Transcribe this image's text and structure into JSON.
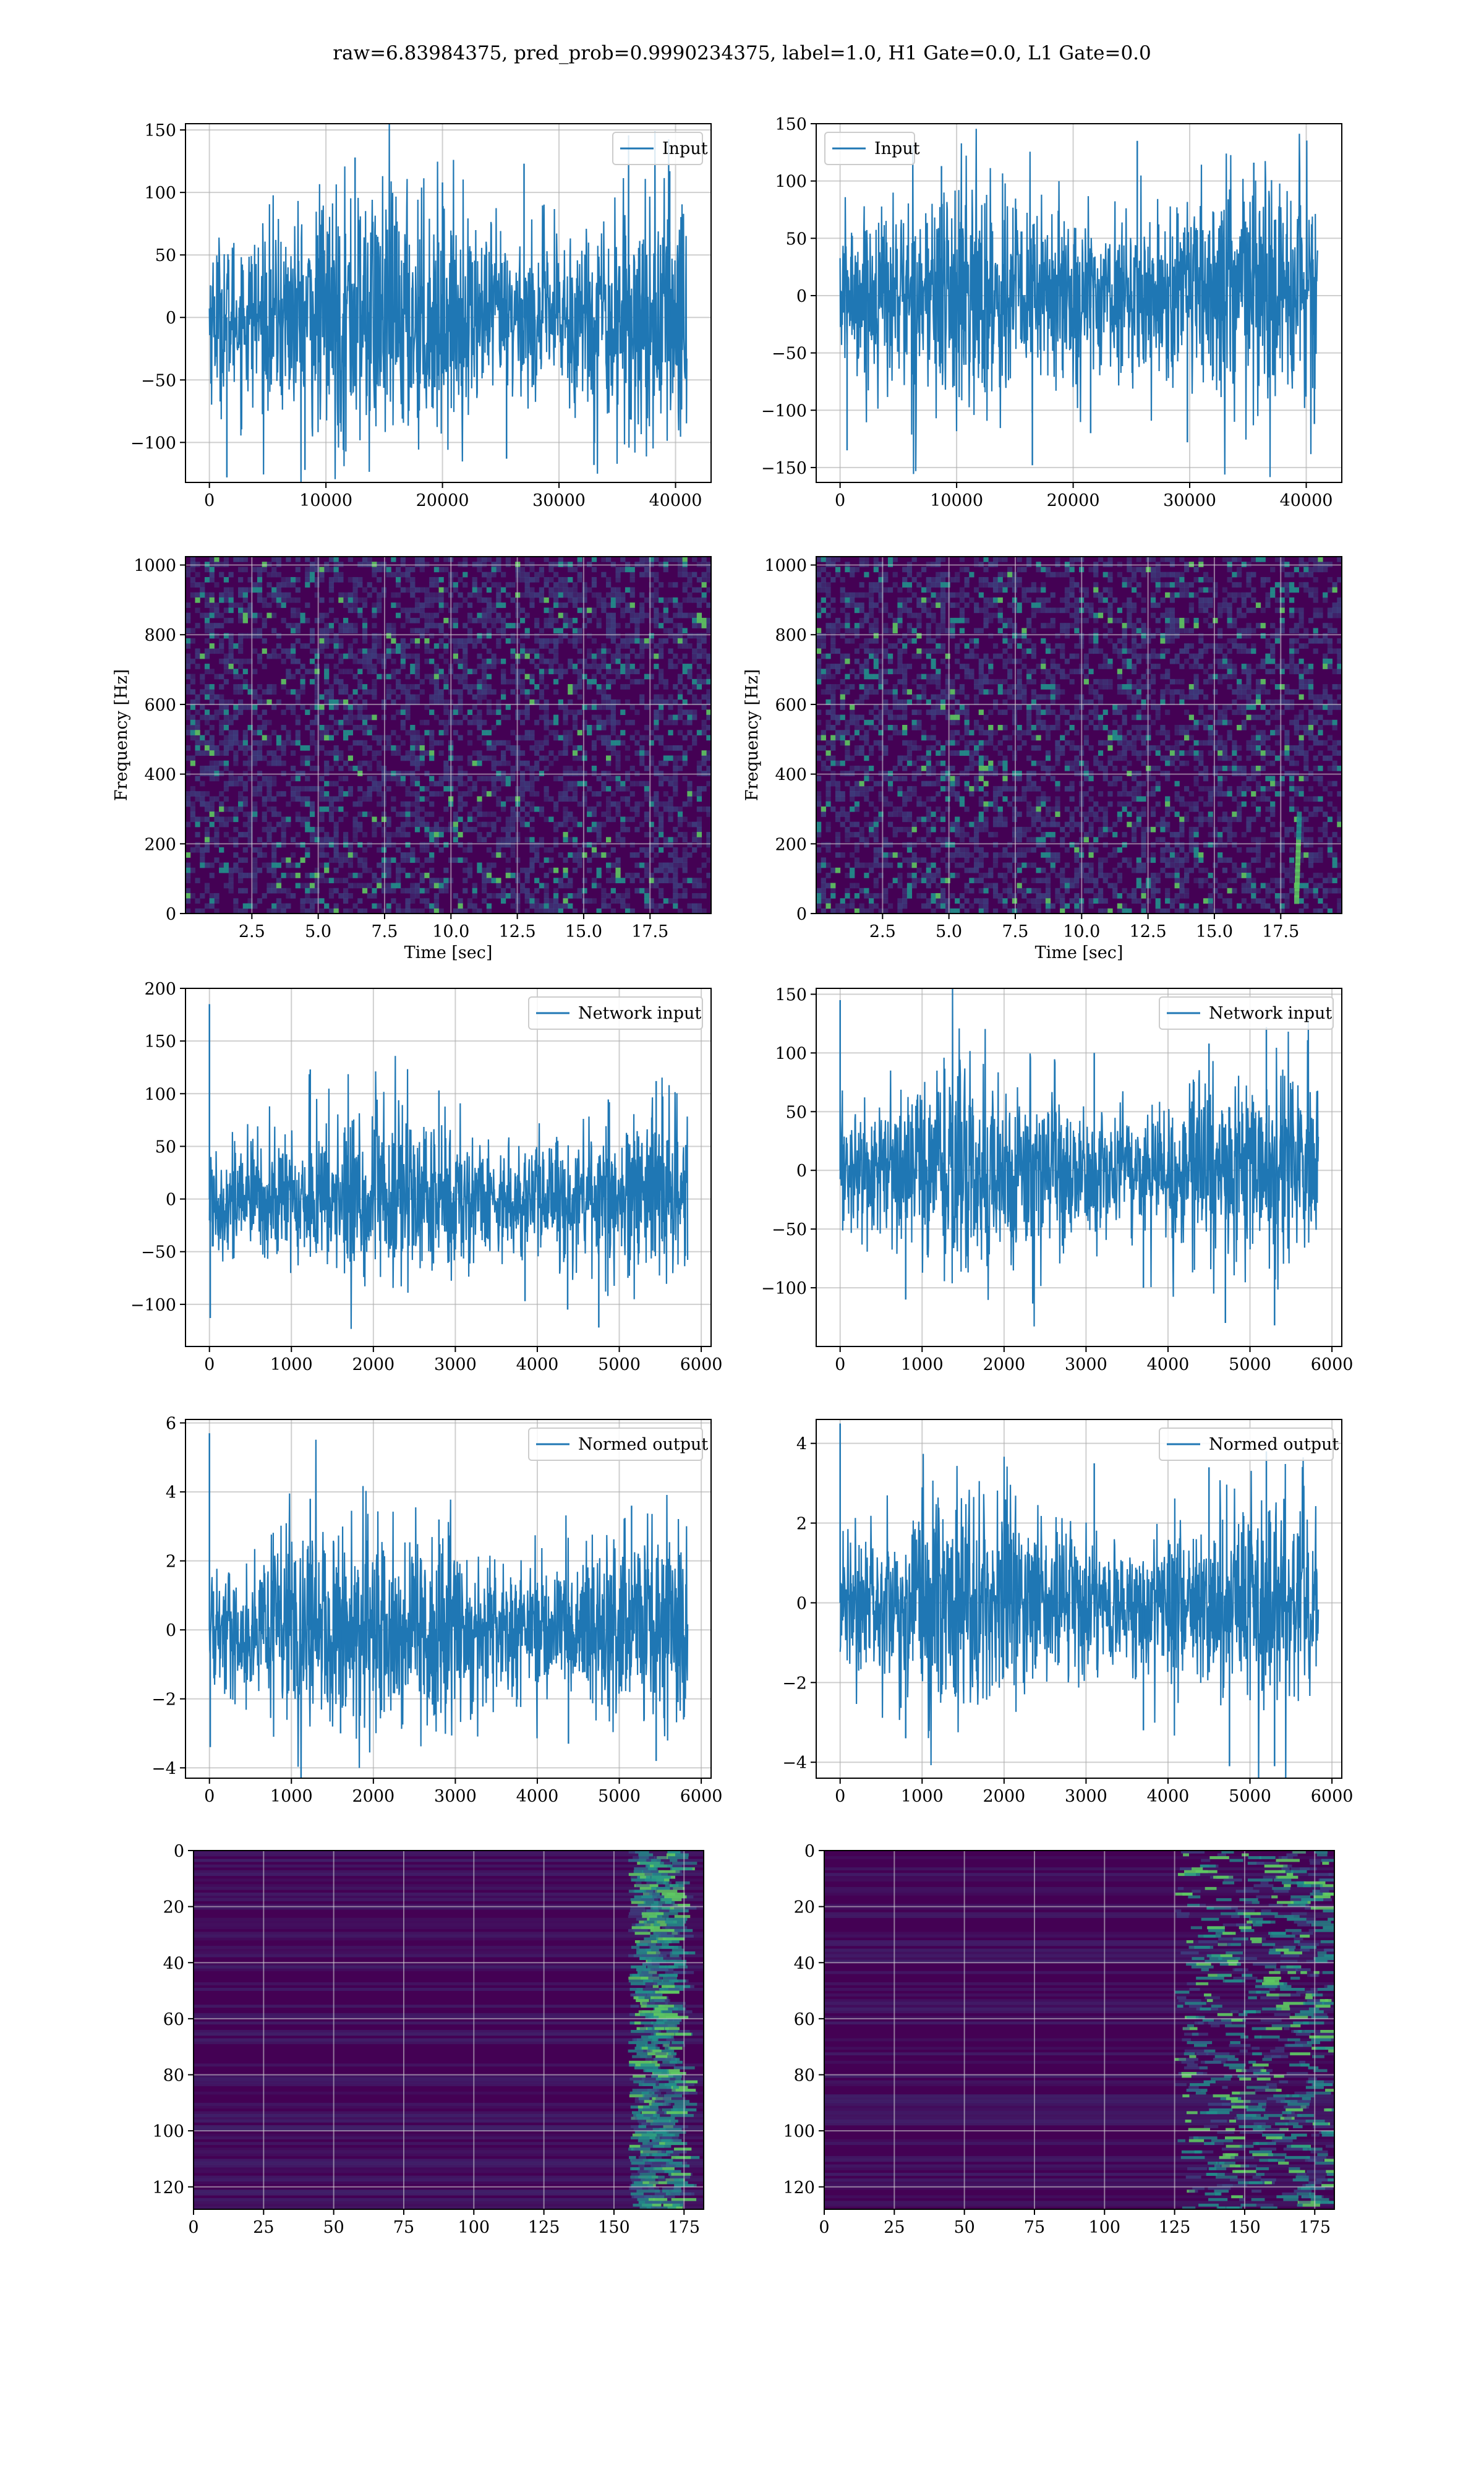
{
  "figure": {
    "title": "raw=6.83984375, pred_prob=0.9990234375, label=1.0, H1 Gate=0.0, L1 Gate=0.0"
  },
  "colors": {
    "line": "#1f77b4",
    "grid": "#b0b0b0",
    "viridis_low": "#440154",
    "viridis_mid": "#3b528b",
    "viridis_high": "#21918c",
    "viridis_peak": "#5ec962"
  },
  "chart_data": [
    {
      "id": "h1-input",
      "type": "line",
      "title": "",
      "xlabel": "",
      "ylabel": "",
      "xlim": [
        -2050,
        43050
      ],
      "ylim": [
        -132,
        155
      ],
      "xticks": [
        0,
        10000,
        20000,
        30000,
        40000
      ],
      "xticklabels": [
        "0",
        "10000",
        "20000",
        "30000",
        "40000"
      ],
      "yticks": [
        -100,
        -50,
        0,
        50,
        100,
        150
      ],
      "yticklabels": [
        "−100",
        "−50",
        "0",
        "50",
        "100",
        "150"
      ],
      "series": [
        {
          "name": "Input",
          "x_range": [
            0,
            40960
          ],
          "amplitude": 32,
          "spikes": [
            {
              "x": 1500,
              "y": -128
            },
            {
              "x": 12500,
              "y": 128
            },
            {
              "x": 27000,
              "y": 123
            },
            {
              "x": 39500,
              "y": 117
            },
            {
              "x": 8200,
              "y": -122
            },
            {
              "x": 20000,
              "y": 108
            },
            {
              "x": 33000,
              "y": -118
            },
            {
              "x": 25500,
              "y": -113
            }
          ]
        }
      ],
      "legend": "upper right",
      "grid": true
    },
    {
      "id": "l1-input",
      "type": "line",
      "title": "",
      "xlabel": "",
      "ylabel": "",
      "xlim": [
        -2050,
        43050
      ],
      "ylim": [
        -163,
        150
      ],
      "xticks": [
        0,
        10000,
        20000,
        30000,
        40000
      ],
      "xticklabels": [
        "0",
        "10000",
        "20000",
        "30000",
        "40000"
      ],
      "yticks": [
        -150,
        -100,
        -50,
        0,
        50,
        100,
        150
      ],
      "yticklabels": [
        "−150",
        "−100",
        "−50",
        "0",
        "50",
        "100",
        "150"
      ],
      "series": [
        {
          "name": "Input",
          "x_range": [
            0,
            40960
          ],
          "amplitude": 32,
          "spikes": [
            {
              "x": 16500,
              "y": -148
            },
            {
              "x": 25500,
              "y": 135
            },
            {
              "x": 600,
              "y": -135
            },
            {
              "x": 29800,
              "y": -128
            },
            {
              "x": 21500,
              "y": -120
            },
            {
              "x": 40700,
              "y": -112
            },
            {
              "x": 35500,
              "y": 116
            },
            {
              "x": 8700,
              "y": 113
            }
          ]
        }
      ],
      "legend": "upper left",
      "grid": true
    },
    {
      "id": "h1-spectrogram",
      "type": "heatmap",
      "title": "",
      "xlabel": "Time [sec]",
      "ylabel": "Frequency [Hz]",
      "xlim": [
        0,
        19.8
      ],
      "ylim": [
        0,
        1024
      ],
      "xticks": [
        2.5,
        5.0,
        7.5,
        10.0,
        12.5,
        15.0,
        17.5
      ],
      "xticklabels": [
        "2.5",
        "5.0",
        "7.5",
        "10.0",
        "12.5",
        "15.0",
        "17.5"
      ],
      "yticks": [
        0,
        200,
        400,
        600,
        800,
        1000
      ],
      "yticklabels": [
        "0",
        "200",
        "400",
        "600",
        "800",
        "1000"
      ],
      "colormap": "viridis",
      "grid": true
    },
    {
      "id": "l1-spectrogram",
      "type": "heatmap",
      "title": "",
      "xlabel": "Time [sec]",
      "ylabel": "Frequency [Hz]",
      "xlim": [
        0,
        19.8
      ],
      "ylim": [
        0,
        1024
      ],
      "xticks": [
        2.5,
        5.0,
        7.5,
        10.0,
        12.5,
        15.0,
        17.5
      ],
      "xticklabels": [
        "2.5",
        "5.0",
        "7.5",
        "10.0",
        "12.5",
        "15.0",
        "17.5"
      ],
      "yticks": [
        0,
        200,
        400,
        600,
        800,
        1000
      ],
      "yticklabels": [
        "0",
        "200",
        "400",
        "600",
        "800",
        "1000"
      ],
      "colormap": "viridis",
      "grid": true,
      "chirp": {
        "t_start": 18.1,
        "t_end": 18.2,
        "f_start": 40,
        "f_end": 280
      }
    },
    {
      "id": "h1-network-input",
      "type": "line",
      "title": "",
      "xlabel": "",
      "ylabel": "",
      "xlim": [
        -292,
        6120
      ],
      "ylim": [
        -140,
        200
      ],
      "xticks": [
        0,
        1000,
        2000,
        3000,
        4000,
        5000,
        6000
      ],
      "xticklabels": [
        "0",
        "1000",
        "2000",
        "3000",
        "4000",
        "5000",
        "6000"
      ],
      "yticks": [
        -100,
        -50,
        0,
        50,
        100,
        150,
        200
      ],
      "yticklabels": [
        "−100",
        "−50",
        "0",
        "50",
        "100",
        "150",
        "200"
      ],
      "series": [
        {
          "name": "Network input",
          "x_range": [
            0,
            5832
          ],
          "amplitude": 26,
          "spikes": [
            {
              "x": 0,
              "y": 185
            },
            {
              "x": 10,
              "y": -113
            },
            {
              "x": 1230,
              "y": 123
            },
            {
              "x": 4750,
              "y": -122
            },
            {
              "x": 4370,
              "y": -105
            },
            {
              "x": 5450,
              "y": 112
            },
            {
              "x": 2800,
              "y": 103
            },
            {
              "x": 3850,
              "y": -97
            }
          ]
        }
      ],
      "legend": "upper right",
      "grid": true
    },
    {
      "id": "l1-network-input",
      "type": "line",
      "title": "",
      "xlabel": "",
      "ylabel": "",
      "xlim": [
        -292,
        6120
      ],
      "ylim": [
        -150,
        155
      ],
      "xticks": [
        0,
        1000,
        2000,
        3000,
        4000,
        5000,
        6000
      ],
      "xticklabels": [
        "0",
        "1000",
        "2000",
        "3000",
        "4000",
        "5000",
        "6000"
      ],
      "yticks": [
        -100,
        -50,
        0,
        50,
        100,
        150
      ],
      "yticklabels": [
        "−100",
        "−50",
        "0",
        "50",
        "100",
        "150"
      ],
      "series": [
        {
          "name": "Network input",
          "x_range": [
            0,
            5832
          ],
          "amplitude": 26,
          "spikes": [
            {
              "x": 0,
              "y": 145
            },
            {
              "x": 5200,
              "y": 122
            },
            {
              "x": 4700,
              "y": -130
            },
            {
              "x": 5300,
              "y": -132
            },
            {
              "x": 3100,
              "y": 100
            },
            {
              "x": 4500,
              "y": 108
            },
            {
              "x": 800,
              "y": -110
            },
            {
              "x": 3700,
              "y": -100
            }
          ]
        }
      ],
      "legend": "upper right",
      "grid": true
    },
    {
      "id": "h1-normed-output",
      "type": "line",
      "title": "",
      "xlabel": "",
      "ylabel": "",
      "xlim": [
        -292,
        6120
      ],
      "ylim": [
        -4.3,
        6.1
      ],
      "xticks": [
        0,
        1000,
        2000,
        3000,
        4000,
        5000,
        6000
      ],
      "xticklabels": [
        "0",
        "1000",
        "2000",
        "3000",
        "4000",
        "5000",
        "6000"
      ],
      "yticks": [
        -4,
        -2,
        0,
        2,
        4,
        6
      ],
      "yticklabels": [
        "−4",
        "−2",
        "0",
        "2",
        "4",
        "6"
      ],
      "series": [
        {
          "name": "Normed output",
          "x_range": [
            0,
            5832
          ],
          "amplitude": 0.95,
          "spikes": [
            {
              "x": 0,
              "y": 5.7
            },
            {
              "x": 10,
              "y": -3.4
            },
            {
              "x": 1230,
              "y": 3.8
            },
            {
              "x": 5450,
              "y": -3.8
            },
            {
              "x": 4380,
              "y": -3.3
            },
            {
              "x": 2800,
              "y": 3.2
            },
            {
              "x": 5150,
              "y": 3.6
            },
            {
              "x": 1600,
              "y": -3.0
            }
          ]
        }
      ],
      "legend": "upper right",
      "grid": true
    },
    {
      "id": "l1-normed-output",
      "type": "line",
      "title": "",
      "xlabel": "",
      "ylabel": "",
      "xlim": [
        -292,
        6120
      ],
      "ylim": [
        -4.4,
        4.6
      ],
      "xticks": [
        0,
        1000,
        2000,
        3000,
        4000,
        5000,
        6000
      ],
      "xticklabels": [
        "0",
        "1000",
        "2000",
        "3000",
        "4000",
        "5000",
        "6000"
      ],
      "yticks": [
        -4,
        -2,
        0,
        2,
        4
      ],
      "yticklabels": [
        "−4",
        "−2",
        "0",
        "2",
        "4"
      ],
      "series": [
        {
          "name": "Normed output",
          "x_range": [
            0,
            5832
          ],
          "amplitude": 0.85,
          "spikes": [
            {
              "x": 0,
              "y": 4.5
            },
            {
              "x": 4750,
              "y": -4.1
            },
            {
              "x": 5300,
              "y": -4.1
            },
            {
              "x": 5200,
              "y": 3.8
            },
            {
              "x": 3100,
              "y": 3.5
            },
            {
              "x": 4500,
              "y": 3.4
            },
            {
              "x": 800,
              "y": -3.4
            },
            {
              "x": 3700,
              "y": -3.2
            }
          ]
        }
      ],
      "legend": "upper right",
      "grid": true
    },
    {
      "id": "h1-features",
      "type": "heatmap",
      "title": "",
      "xlabel": "",
      "ylabel": "",
      "xlim": [
        0,
        182
      ],
      "ylim": [
        128,
        0
      ],
      "xticks": [
        0,
        25,
        50,
        75,
        100,
        125,
        150,
        175
      ],
      "xticklabels": [
        "0",
        "25",
        "50",
        "75",
        "100",
        "125",
        "150",
        "175"
      ],
      "yticks": [
        0,
        20,
        40,
        60,
        80,
        100,
        120
      ],
      "yticklabels": [
        "0",
        "20",
        "40",
        "60",
        "80",
        "100",
        "120"
      ],
      "colormap": "viridis",
      "grid": true,
      "hot_columns": [
        155,
        172
      ]
    },
    {
      "id": "l1-features",
      "type": "heatmap",
      "title": "",
      "xlabel": "",
      "ylabel": "",
      "xlim": [
        0,
        182
      ],
      "ylim": [
        128,
        0
      ],
      "xticks": [
        0,
        25,
        50,
        75,
        100,
        125,
        150,
        175
      ],
      "xticklabels": [
        "0",
        "25",
        "50",
        "75",
        "100",
        "125",
        "150",
        "175"
      ],
      "yticks": [
        0,
        20,
        40,
        60,
        80,
        100,
        120
      ],
      "yticklabels": [
        "0",
        "20",
        "40",
        "60",
        "80",
        "100",
        "120"
      ],
      "colormap": "viridis",
      "grid": true,
      "hot_columns": [
        125,
        180
      ]
    }
  ]
}
